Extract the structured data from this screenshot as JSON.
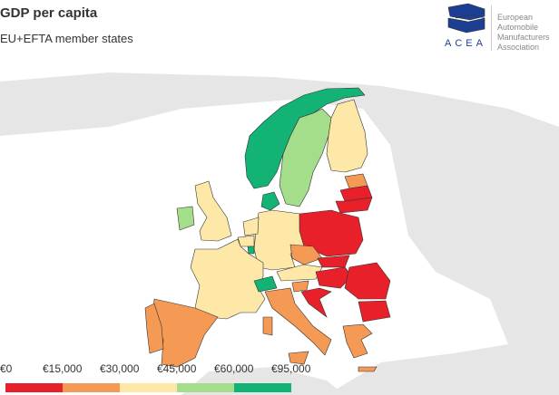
{
  "title": "GDP per capita",
  "subtitle": "EU+EFTA member states",
  "logo": {
    "acronym": "ACEA",
    "lines": [
      "European",
      "Automobile",
      "Manufacturers",
      "Association"
    ]
  },
  "legend": {
    "labels": [
      "€0",
      "€15,000",
      "€30,000",
      "€45,000",
      "€60,000",
      "€95,000"
    ],
    "colors": [
      "#e8202a",
      "#f59a55",
      "#fde8a8",
      "#a5de8a",
      "#12b374"
    ]
  },
  "countries": {
    "Norway": 4,
    "Sweden": 3,
    "Finland": 2,
    "Estonia": 1,
    "Latvia": 0,
    "Lithuania": 0,
    "Poland": 0,
    "Germany": 2,
    "Denmark": 4,
    "Netherlands": 2,
    "Belgium": 2,
    "Luxembourg": 4,
    "France": 2,
    "United Kingdom": 2,
    "Ireland": 3,
    "Spain": 1,
    "Portugal": 1,
    "Italy": 1,
    "Switzerland": 4,
    "Austria": 2,
    "Czechia": 1,
    "Slovakia": 0,
    "Hungary": 0,
    "Slovenia": 1,
    "Croatia": 0,
    "Romania": 0,
    "Bulgaria": 0,
    "Greece": 1
  }
}
